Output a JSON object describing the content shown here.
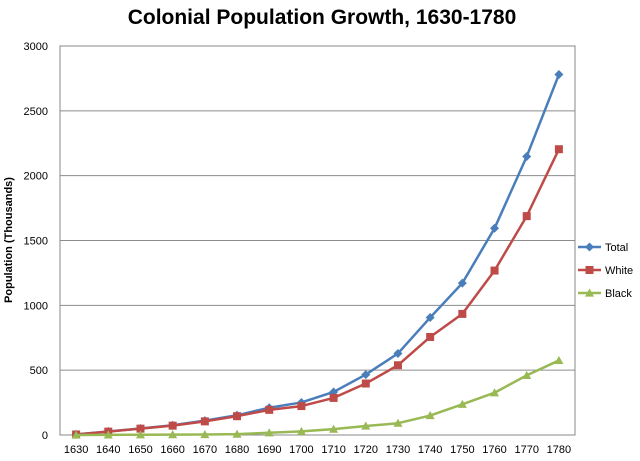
{
  "chart_data": {
    "type": "line",
    "title": "Colonial Population Growth, 1630-1780",
    "xlabel": "",
    "ylabel": "Population (Thousands)",
    "x": [
      "1630",
      "1640",
      "1650",
      "1660",
      "1670",
      "1680",
      "1690",
      "1700",
      "1710",
      "1720",
      "1730",
      "1740",
      "1750",
      "1760",
      "1770",
      "1780"
    ],
    "ylim": [
      0,
      3000
    ],
    "yticks": [
      "0",
      "500",
      "1000",
      "1500",
      "2000",
      "2500",
      "3000"
    ],
    "grid": true,
    "legend_position": "right",
    "series": [
      {
        "name": "Total",
        "color": "#4a7ebb",
        "marker": "diamond",
        "values": [
          5,
          27,
          50,
          75,
          111,
          152,
          210,
          251,
          332,
          466,
          629,
          906,
          1171,
          1594,
          2148,
          2780
        ]
      },
      {
        "name": "White",
        "color": "#be4b48",
        "marker": "square",
        "values": [
          4,
          26,
          49,
          72,
          105,
          145,
          194,
          223,
          286,
          397,
          538,
          756,
          934,
          1268,
          1688,
          2204
        ]
      },
      {
        "name": "Black",
        "color": "#98b954",
        "marker": "triangle",
        "values": [
          0,
          1,
          2,
          3,
          4,
          7,
          17,
          28,
          45,
          69,
          91,
          150,
          237,
          326,
          460,
          575
        ]
      }
    ]
  }
}
